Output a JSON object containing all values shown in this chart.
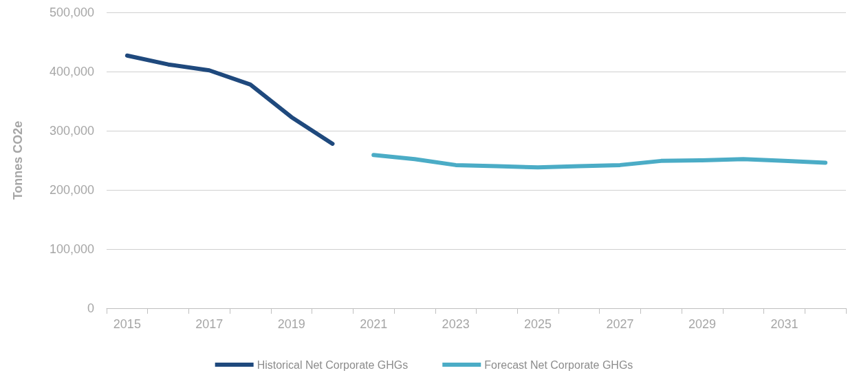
{
  "chart_data": {
    "type": "line",
    "ylabel": "Tonnes CO2e",
    "categories": [
      "2015",
      null,
      "2017",
      null,
      "2019",
      null,
      "2021",
      null,
      "2023",
      null,
      "2025",
      null,
      "2027",
      null,
      "2029",
      null,
      "2031",
      null
    ],
    "series": [
      {
        "name": "Historical Net Corporate GHGs",
        "color": "#1f497d",
        "values": [
          427000,
          412000,
          402000,
          378000,
          323000,
          278000,
          null,
          null,
          null,
          null,
          null,
          null,
          null,
          null,
          null,
          null,
          null,
          null
        ]
      },
      {
        "name": "Forecast Net Corporate GHGs",
        "color": "#4bacc6",
        "values": [
          null,
          null,
          null,
          null,
          null,
          null,
          259000,
          252000,
          242000,
          240000,
          238000,
          240000,
          242000,
          249000,
          250000,
          252000,
          249000,
          246000
        ]
      }
    ],
    "ylim": [
      0,
      500000
    ],
    "yticks": [
      0,
      {
        "value": 100000,
        "label": "100,000"
      },
      {
        "value": 200000,
        "label": "200,000"
      },
      {
        "value": 300000,
        "label": "300,000"
      },
      {
        "value": 400000,
        "label": "400,000"
      },
      {
        "value": 500000,
        "label": "500,000"
      }
    ],
    "grid": "y",
    "legend": "bottom",
    "marker": "none",
    "line_style": "solid"
  }
}
